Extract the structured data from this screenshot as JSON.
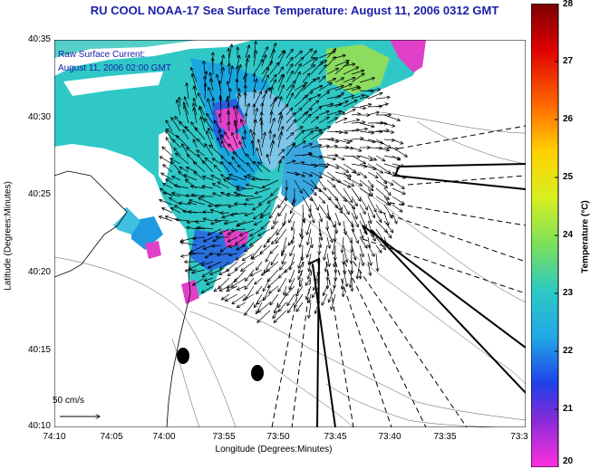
{
  "title": "RU COOL  NOAA-17  Sea Surface Temperature:  August 11, 2006 0312 GMT",
  "legend": {
    "line1": "Raw Surface Current:",
    "line2": "August 11, 2006 02:00 GMT"
  },
  "scale_label": "50 cm/s",
  "axes": {
    "xlabel": "Longitude (Degrees:Minutes)",
    "ylabel": "Latitude (Degrees:Minutes)",
    "xticks": [
      "74:10",
      "74:05",
      "74:00",
      "73:55",
      "73:50",
      "73:45",
      "73:40",
      "73:35",
      "73:3"
    ],
    "yticks": [
      "40:35",
      "40:30",
      "40:25",
      "40:20",
      "40:15",
      "40:10"
    ]
  },
  "colorbar": {
    "label": "Temperature (°C)",
    "ticks": [
      "28",
      "27",
      "26",
      "25",
      "24",
      "23",
      "22",
      "21",
      "20"
    ],
    "range": [
      20,
      28
    ]
  },
  "colors": {
    "title": "#1b1fa8",
    "land": "#ffffff",
    "water_base": "#28c8c8"
  }
}
